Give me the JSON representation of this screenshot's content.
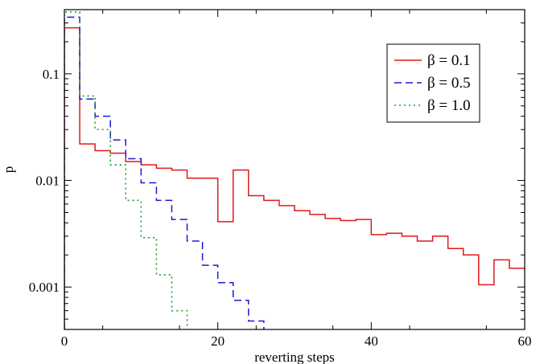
{
  "chart_data": {
    "type": "line",
    "step": true,
    "xlabel": "reverting steps",
    "ylabel": "p",
    "xlim": [
      0,
      60
    ],
    "ylim": [
      0.0004,
      0.4
    ],
    "yscale": "log",
    "grid": false,
    "legend_position": "top-right",
    "x_ticks": [
      {
        "value": 0,
        "label": "0"
      },
      {
        "value": 20,
        "label": "20"
      },
      {
        "value": 40,
        "label": "40"
      },
      {
        "value": 60,
        "label": "60"
      }
    ],
    "y_ticks": [
      {
        "value": 0.001,
        "label": "0.001"
      },
      {
        "value": 0.01,
        "label": "0.01"
      },
      {
        "value": 0.1,
        "label": "0.1"
      }
    ],
    "series": [
      {
        "name": "β = 0.1",
        "color": "#e0191b",
        "dash": "solid",
        "bins": [
          0,
          2,
          4,
          6,
          8,
          10,
          12,
          14,
          16,
          18,
          20,
          22,
          24,
          26,
          28,
          30,
          32,
          34,
          36,
          38,
          40,
          42,
          44,
          46,
          48,
          50,
          52,
          54,
          56,
          58,
          60
        ],
        "values": [
          0.27,
          0.022,
          0.019,
          0.018,
          0.015,
          0.014,
          0.013,
          0.0125,
          0.0105,
          0.0105,
          0.0041,
          0.0125,
          0.0072,
          0.0065,
          0.0058,
          0.0052,
          0.0048,
          0.0044,
          0.0042,
          0.0043,
          0.0031,
          0.0032,
          0.003,
          0.0027,
          0.003,
          0.0023,
          0.002,
          0.00105,
          0.0018,
          0.0015,
          0.00143
        ]
      },
      {
        "name": "β = 0.5",
        "color": "#1a1ad8",
        "dash": "dashed",
        "bins": [
          0,
          2,
          4,
          6,
          8,
          10,
          12,
          14,
          16,
          18,
          20,
          22,
          24,
          26
        ],
        "values": [
          0.34,
          0.058,
          0.04,
          0.024,
          0.016,
          0.0095,
          0.0065,
          0.0043,
          0.0027,
          0.0016,
          0.0011,
          0.00075,
          0.00048
        ]
      },
      {
        "name": "β = 1.0",
        "color": "#1f9a2a",
        "dash": "dotted",
        "bins": [
          0,
          2,
          4,
          6,
          8,
          10,
          12,
          14,
          16
        ],
        "values": [
          0.38,
          0.062,
          0.03,
          0.014,
          0.0065,
          0.0029,
          0.0013,
          0.0006
        ]
      }
    ]
  }
}
